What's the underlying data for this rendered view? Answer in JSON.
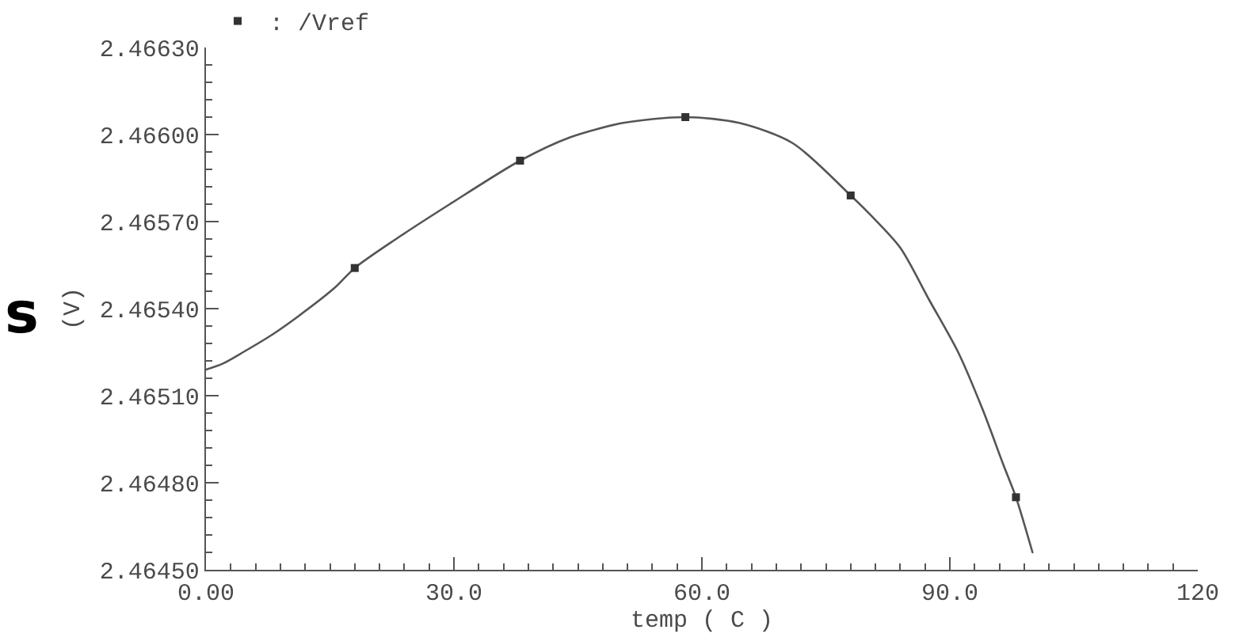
{
  "chart_data": {
    "type": "line",
    "xlabel": "temp ( C )",
    "ylabel": "(V)",
    "annotations": [
      "s"
    ],
    "series": [
      {
        "color": "#555555",
        "x": [
          0,
          2,
          4.5,
          8,
          11,
          15.5,
          18,
          23,
          29.5,
          38,
          44,
          50.5,
          58,
          64.5,
          71,
          78,
          80.5,
          84,
          87.5,
          91,
          94,
          96.5,
          98,
          100
        ],
        "values": [
          2.46519,
          2.46521,
          2.46525,
          2.46531,
          2.46537,
          2.46547,
          2.46554,
          2.46564,
          2.46576,
          2.46591,
          2.46599,
          2.46604,
          2.46606,
          2.46604,
          2.46597,
          2.46579,
          2.46572,
          2.46561,
          2.46543,
          2.46525,
          2.46505,
          2.46486,
          2.46475,
          2.46456
        ]
      },
      {
        "type": "scatter",
        "name": ": /Vref",
        "color": "#333333",
        "marker": "square",
        "x": [
          18,
          38,
          58,
          78,
          98
        ],
        "values": [
          2.46554,
          2.46591,
          2.46606,
          2.46579,
          2.46475
        ]
      }
    ],
    "line_style": "solid",
    "legend": "top left",
    "xlim": [
      0,
      120
    ],
    "xticks": [
      {
        "value": 0,
        "label": "0.00"
      },
      {
        "value": 3,
        "label": null
      },
      {
        "value": 6,
        "label": null
      },
      {
        "value": 9,
        "label": null
      },
      {
        "value": 12,
        "label": null
      },
      {
        "value": 15,
        "label": null
      },
      {
        "value": 18,
        "label": null
      },
      {
        "value": 21,
        "label": null
      },
      {
        "value": 24,
        "label": null
      },
      {
        "value": 27,
        "label": null
      },
      {
        "value": 30,
        "label": "30.0"
      },
      {
        "value": 33,
        "label": null
      },
      {
        "value": 36,
        "label": null
      },
      {
        "value": 39,
        "label": null
      },
      {
        "value": 42,
        "label": null
      },
      {
        "value": 45,
        "label": null
      },
      {
        "value": 48,
        "label": null
      },
      {
        "value": 51,
        "label": null
      },
      {
        "value": 54,
        "label": null
      },
      {
        "value": 57,
        "label": null
      },
      {
        "value": 60,
        "label": "60.0"
      },
      {
        "value": 63,
        "label": null
      },
      {
        "value": 66,
        "label": null
      },
      {
        "value": 69,
        "label": null
      },
      {
        "value": 72,
        "label": null
      },
      {
        "value": 75,
        "label": null
      },
      {
        "value": 78,
        "label": null
      },
      {
        "value": 81,
        "label": null
      },
      {
        "value": 84,
        "label": null
      },
      {
        "value": 87,
        "label": null
      },
      {
        "value": 90,
        "label": "90.0"
      },
      {
        "value": 93,
        "label": null
      },
      {
        "value": 96,
        "label": null
      },
      {
        "value": 99,
        "label": null
      },
      {
        "value": 102,
        "label": null
      },
      {
        "value": 105,
        "label": null
      },
      {
        "value": 108,
        "label": null
      },
      {
        "value": 111,
        "label": null
      },
      {
        "value": 114,
        "label": null
      },
      {
        "value": 117,
        "label": null
      },
      {
        "value": 120,
        "label": "120"
      }
    ],
    "ylim": [
      2.4645,
      2.4663
    ],
    "yticks": [
      {
        "value": 2.4645,
        "label": "2.46450"
      },
      {
        "value": 2.46456,
        "label": null
      },
      {
        "value": 2.46462,
        "label": null
      },
      {
        "value": 2.46468,
        "label": null
      },
      {
        "value": 2.46474,
        "label": null
      },
      {
        "value": 2.4648,
        "label": "2.46480"
      },
      {
        "value": 2.46486,
        "label": null
      },
      {
        "value": 2.46492,
        "label": null
      },
      {
        "value": 2.46498,
        "label": null
      },
      {
        "value": 2.46504,
        "label": null
      },
      {
        "value": 2.4651,
        "label": "2.46510"
      },
      {
        "value": 2.46516,
        "label": null
      },
      {
        "value": 2.46522,
        "label": null
      },
      {
        "value": 2.46528,
        "label": null
      },
      {
        "value": 2.46534,
        "label": null
      },
      {
        "value": 2.4654,
        "label": "2.46540"
      },
      {
        "value": 2.46546,
        "label": null
      },
      {
        "value": 2.46552,
        "label": null
      },
      {
        "value": 2.46558,
        "label": null
      },
      {
        "value": 2.46564,
        "label": null
      },
      {
        "value": 2.4657,
        "label": "2.46570"
      },
      {
        "value": 2.46576,
        "label": null
      },
      {
        "value": 2.46582,
        "label": null
      },
      {
        "value": 2.46588,
        "label": null
      },
      {
        "value": 2.46594,
        "label": null
      },
      {
        "value": 2.466,
        "label": "2.46600"
      },
      {
        "value": 2.46606,
        "label": null
      },
      {
        "value": 2.46612,
        "label": null
      },
      {
        "value": 2.46618,
        "label": null
      },
      {
        "value": 2.46624,
        "label": null
      },
      {
        "value": 2.4663,
        "label": "2.46630"
      }
    ]
  }
}
